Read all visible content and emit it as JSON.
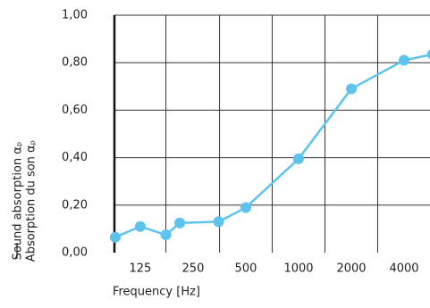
{
  "chart_data": {
    "type": "line",
    "x_label": "Frequency [Hz]",
    "y_label": [
      "Sound absorption αₚ",
      "Absorption du son αₚ"
    ],
    "x": [
      90,
      125,
      175,
      210,
      350,
      500,
      1000,
      2000,
      4000,
      5800
    ],
    "series": [
      {
        "color": "#5cc3ef",
        "values": [
          0.065,
          0.11,
          0.075,
          0.125,
          0.13,
          0.19,
          0.395,
          0.69,
          0.81,
          0.835
        ]
      }
    ],
    "xscale": "log",
    "xlim": [
      89,
      5620
    ],
    "xticks": [
      125,
      250,
      500,
      1000,
      2000,
      4000
    ],
    "xgrid": [
      175,
      354,
      707,
      1414,
      2828
    ],
    "ylim": [
      0,
      1
    ],
    "yticks": [
      {
        "value": 0,
        "label": "0,00"
      },
      {
        "value": 0.2,
        "label": "0,20"
      },
      {
        "value": 0.4,
        "label": "0,40"
      },
      {
        "value": 0.6,
        "label": "0,60"
      },
      {
        "value": 0.8,
        "label": "0,80"
      },
      {
        "value": 1,
        "label": "1,00"
      }
    ],
    "grid": true
  }
}
